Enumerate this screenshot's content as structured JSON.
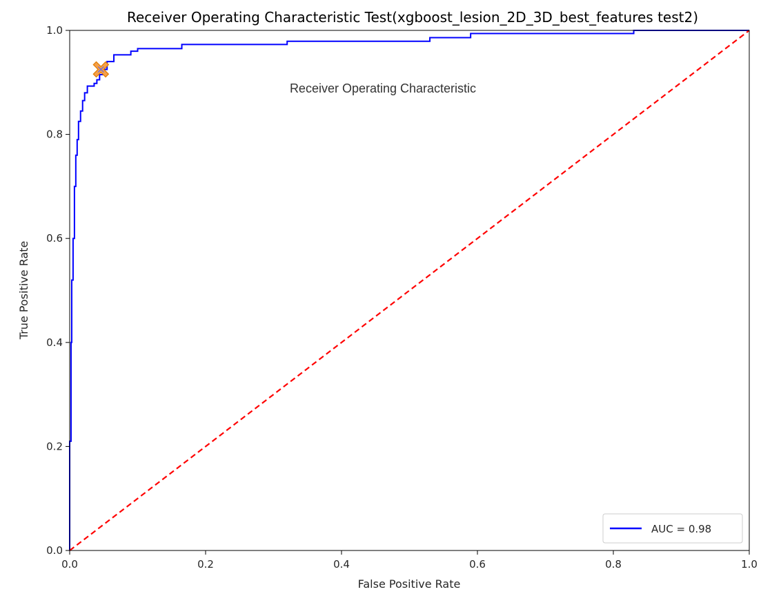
{
  "chart_data": {
    "type": "line",
    "title": "Receiver Operating Characteristic Test(xgboost_lesion_2D_3D_best_features test2)",
    "xlabel": "False Positive Rate",
    "ylabel": "True Positive Rate",
    "xlim": [
      0.0,
      1.0
    ],
    "ylim": [
      0.0,
      1.0
    ],
    "xticks": [
      "0.0",
      "0.2",
      "0.4",
      "0.6",
      "0.8",
      "1.0"
    ],
    "yticks": [
      "0.0",
      "0.2",
      "0.4",
      "0.6",
      "0.8",
      "1.0"
    ],
    "grid": false,
    "annotation": "Receiver Operating Characteristic",
    "legend": {
      "placement": "lower-right",
      "entries": [
        "AUC = 0.98"
      ]
    },
    "series": [
      {
        "name": "AUC = 0.98",
        "color": "#0000ff",
        "style": "solid",
        "points": [
          [
            0.0,
            0.0
          ],
          [
            0.0,
            0.21
          ],
          [
            0.002,
            0.21
          ],
          [
            0.002,
            0.4
          ],
          [
            0.003,
            0.4
          ],
          [
            0.003,
            0.52
          ],
          [
            0.005,
            0.52
          ],
          [
            0.005,
            0.6
          ],
          [
            0.007,
            0.6
          ],
          [
            0.007,
            0.7
          ],
          [
            0.009,
            0.7
          ],
          [
            0.009,
            0.76
          ],
          [
            0.011,
            0.76
          ],
          [
            0.011,
            0.79
          ],
          [
            0.013,
            0.79
          ],
          [
            0.013,
            0.825
          ],
          [
            0.016,
            0.825
          ],
          [
            0.016,
            0.845
          ],
          [
            0.019,
            0.845
          ],
          [
            0.019,
            0.865
          ],
          [
            0.022,
            0.865
          ],
          [
            0.022,
            0.88
          ],
          [
            0.026,
            0.88
          ],
          [
            0.026,
            0.893
          ],
          [
            0.036,
            0.893
          ],
          [
            0.036,
            0.898
          ],
          [
            0.04,
            0.898
          ],
          [
            0.04,
            0.905
          ],
          [
            0.044,
            0.905
          ],
          [
            0.044,
            0.915
          ],
          [
            0.05,
            0.915
          ],
          [
            0.05,
            0.925
          ],
          [
            0.055,
            0.925
          ],
          [
            0.055,
            0.94
          ],
          [
            0.065,
            0.94
          ],
          [
            0.065,
            0.953
          ],
          [
            0.09,
            0.953
          ],
          [
            0.09,
            0.96
          ],
          [
            0.1,
            0.96
          ],
          [
            0.1,
            0.965
          ],
          [
            0.165,
            0.965
          ],
          [
            0.165,
            0.973
          ],
          [
            0.32,
            0.973
          ],
          [
            0.32,
            0.979
          ],
          [
            0.53,
            0.979
          ],
          [
            0.53,
            0.986
          ],
          [
            0.59,
            0.986
          ],
          [
            0.59,
            0.994
          ],
          [
            0.83,
            0.994
          ],
          [
            0.83,
            1.0
          ],
          [
            1.0,
            1.0
          ]
        ]
      },
      {
        "name": "",
        "color": "#ff0000",
        "style": "dashed",
        "points": [
          [
            0.0,
            0.0
          ],
          [
            1.0,
            1.0
          ]
        ]
      }
    ],
    "marker": {
      "x": 0.046,
      "y": 0.925,
      "color": "#f5a04a",
      "edge_color": "#e07b00",
      "inner_color": "#7b6fc9"
    }
  }
}
